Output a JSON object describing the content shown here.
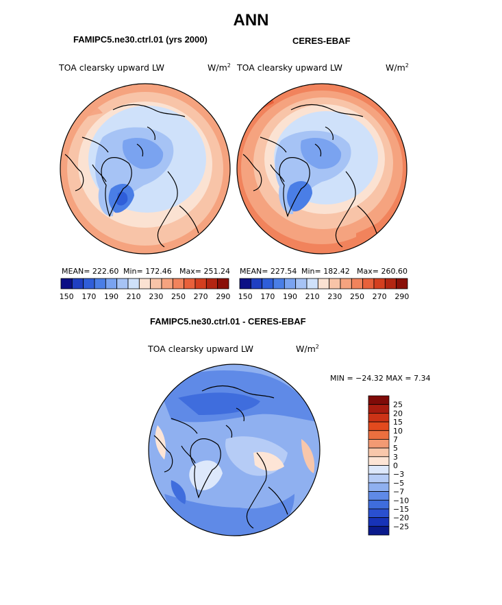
{
  "main_title": "ANN",
  "panels": [
    {
      "title": "FAMIPC5.ne30.ctrl.01 (yrs 2000)",
      "variable": "TOA clearsky upward LW",
      "units": "W/m",
      "units_sup": "2",
      "stats": {
        "mean": "MEAN= 222.60",
        "min": "Min= 172.46",
        "max": "Max= 251.24"
      }
    },
    {
      "title": "CERES-EBAF",
      "variable": "TOA clearsky upward LW",
      "units": "W/m",
      "units_sup": "2",
      "stats": {
        "mean": "MEAN= 227.54",
        "min": "Min= 182.42",
        "max": "Max= 260.60"
      }
    },
    {
      "title": "FAMIPC5.ne30.ctrl.01 - CERES-EBAF",
      "variable": "TOA clearsky upward LW",
      "units": "W/m",
      "units_sup": "2",
      "minmax": "MIN = −24.32 MAX =    7.34"
    }
  ],
  "chart_data": [
    {
      "type": "heatmap",
      "projection": "polar stereographic (north pole)",
      "title": "FAMIPC5.ne30.ctrl.01 (yrs 2000)",
      "variable": "TOA clearsky upward LW",
      "units": "W/m2",
      "mean": 222.6,
      "min": 172.46,
      "max": 251.24,
      "colorbar_levels": [
        150,
        160,
        170,
        180,
        190,
        200,
        210,
        220,
        230,
        240,
        250,
        260,
        270,
        280,
        290
      ],
      "colorbar_tick_labels": [
        "150",
        "170",
        "190",
        "210",
        "230",
        "250",
        "270",
        "290"
      ]
    },
    {
      "type": "heatmap",
      "projection": "polar stereographic (north pole)",
      "title": "CERES-EBAF",
      "variable": "TOA clearsky upward LW",
      "units": "W/m2",
      "mean": 227.54,
      "min": 182.42,
      "max": 260.6,
      "colorbar_levels": [
        150,
        160,
        170,
        180,
        190,
        200,
        210,
        220,
        230,
        240,
        250,
        260,
        270,
        280,
        290
      ],
      "colorbar_tick_labels": [
        "150",
        "170",
        "190",
        "210",
        "230",
        "250",
        "270",
        "290"
      ]
    },
    {
      "type": "heatmap",
      "projection": "polar stereographic (north pole)",
      "title": "FAMIPC5.ne30.ctrl.01 - CERES-EBAF",
      "variable": "TOA clearsky upward LW",
      "units": "W/m2",
      "min": -24.32,
      "max": 7.34,
      "colorbar_levels": [
        25,
        20,
        15,
        10,
        7,
        5,
        3,
        0,
        -3,
        -5,
        -7,
        -10,
        -15,
        -20,
        -25
      ],
      "colorbar_tick_labels": [
        "25",
        "20",
        "15",
        "10",
        "7",
        "5",
        "3",
        "0",
        "−3",
        "−5",
        "−7",
        "−10",
        "−15",
        "−20",
        "−25"
      ]
    }
  ],
  "colors": {
    "palette": [
      "#0b0f85",
      "#1f3fc2",
      "#2f5ed9",
      "#4a7ee6",
      "#7aa3f0",
      "#a6c3f5",
      "#cfe1fa",
      "#fbe2d2",
      "#f8c4a8",
      "#f5a37f",
      "#f1835c",
      "#e8613b",
      "#d43f1f",
      "#b32612",
      "#8a1008"
    ],
    "diff_palette": [
      "#7f0b08",
      "#a81c0f",
      "#cc3316",
      "#e24a1e",
      "#ec6f3f",
      "#f39a73",
      "#f8c7ab",
      "#fde5d6",
      "#dde8fb",
      "#b6ccf6",
      "#8fb0f0",
      "#5f8ae7",
      "#3f6ddd",
      "#2a50d0",
      "#1733b8",
      "#0a1a8c"
    ]
  }
}
